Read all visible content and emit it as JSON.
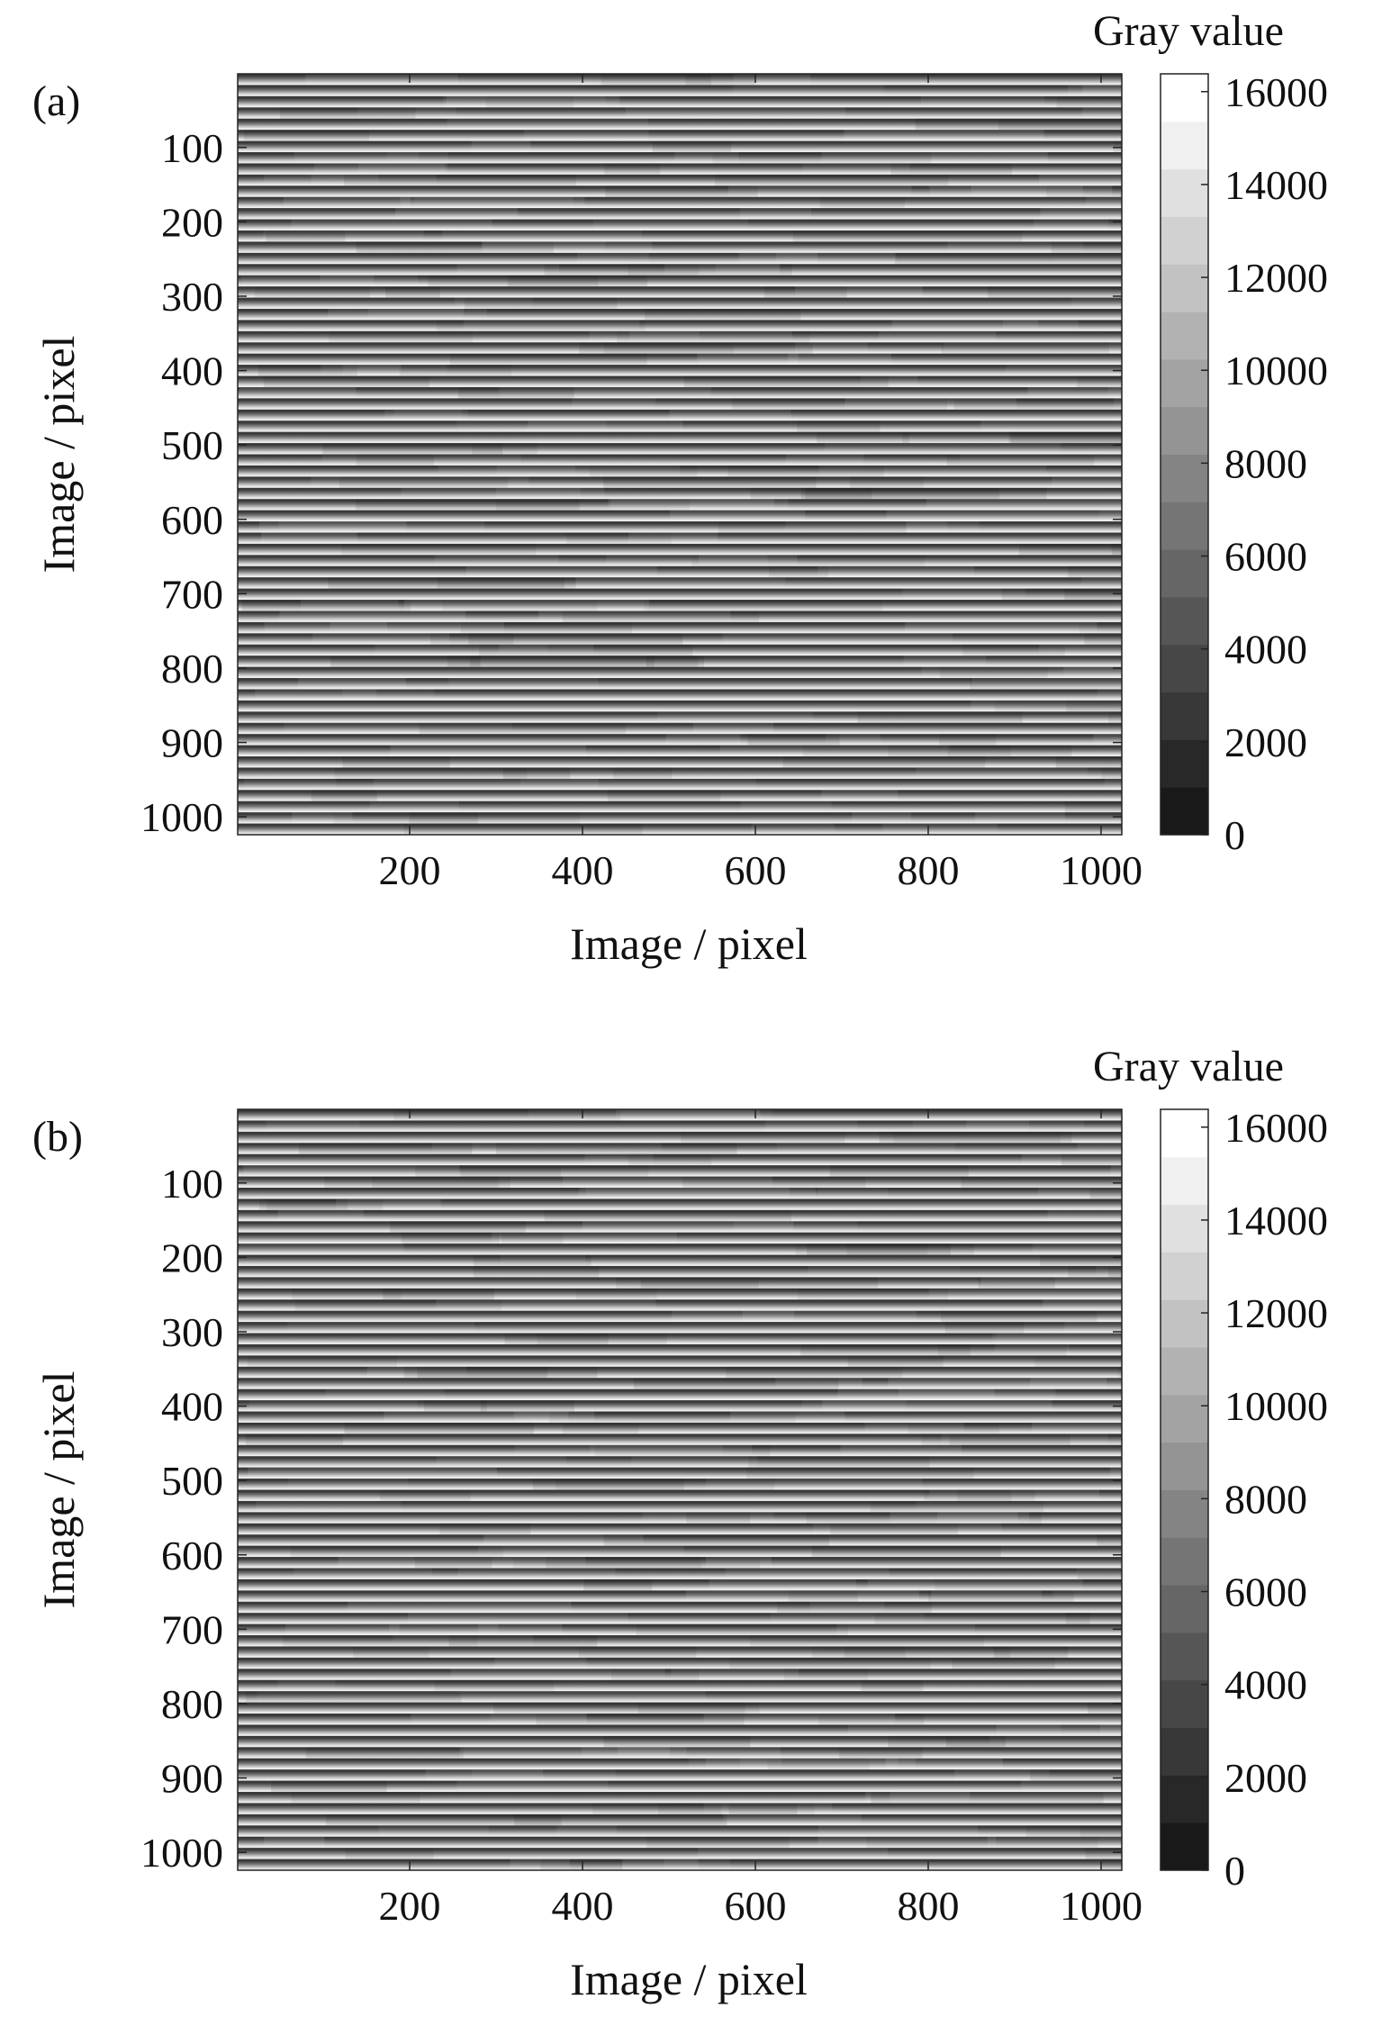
{
  "chart_data": [
    {
      "type": "heatmap",
      "panel_label": "(a)",
      "description_values": "Horizontal stripe fringe pattern; gray value varies along image rows (y) with roughly uniform stripes across columns (x).",
      "xlabel": "Image / pixel",
      "ylabel": "Image / pixel",
      "xlim": [
        1,
        1024
      ],
      "ylim": [
        1,
        1024
      ],
      "y_reversed": true,
      "xticks": [
        200,
        400,
        600,
        800,
        1000
      ],
      "yticks": [
        100,
        200,
        300,
        400,
        500,
        600,
        700,
        800,
        900,
        1000
      ],
      "stripe_count": 68,
      "colorbar": {
        "title": "Gray value",
        "range": [
          0,
          16383
        ],
        "ticks": [
          0,
          2000,
          4000,
          6000,
          8000,
          10000,
          12000,
          14000,
          16000
        ],
        "levels": 16,
        "colormap": "gray"
      }
    },
    {
      "type": "heatmap",
      "panel_label": "(b)",
      "xlabel": "Image / pixel",
      "ylabel": "Image / pixel",
      "xlim": [
        1,
        1024
      ],
      "ylim": [
        1,
        1024
      ],
      "y_reversed": true,
      "xticks": [
        200,
        400,
        600,
        800,
        1000
      ],
      "yticks": [
        100,
        200,
        300,
        400,
        500,
        600,
        700,
        800,
        900,
        1000
      ],
      "stripe_count": 68,
      "colorbar": {
        "title": "Gray value",
        "range": [
          0,
          16383
        ],
        "ticks": [
          0,
          2000,
          4000,
          6000,
          8000,
          10000,
          12000,
          14000,
          16000
        ],
        "levels": 16,
        "colormap": "gray"
      }
    }
  ]
}
